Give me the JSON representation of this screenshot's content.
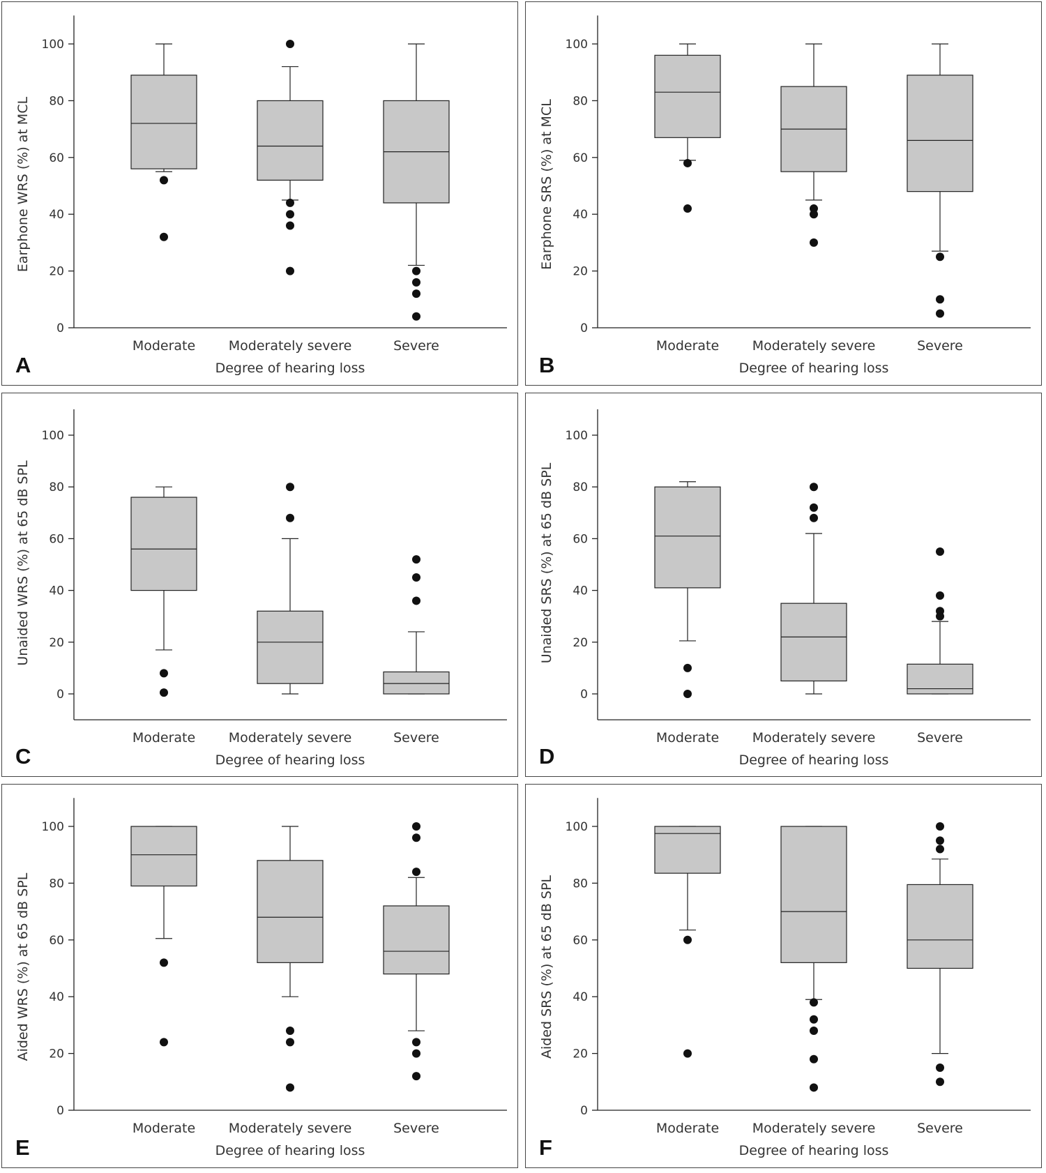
{
  "figure": {
    "panels": [
      "A",
      "B",
      "C",
      "D",
      "E",
      "F"
    ]
  },
  "chart_data": [
    {
      "letter": "A",
      "type": "box",
      "ylabel": "Earphone WRS (%) at MCL",
      "xlabel": "Degree of hearing loss",
      "ylim": [
        0,
        110
      ],
      "yticks": [
        0,
        20,
        40,
        60,
        80,
        100
      ],
      "categories": [
        "Moderate",
        "Moderately severe",
        "Severe"
      ],
      "boxes": [
        {
          "whisker_low": 55,
          "q1": 56,
          "median": 72,
          "q3": 89,
          "whisker_high": 100,
          "outliers": [
            52,
            32
          ]
        },
        {
          "whisker_low": 45,
          "q1": 52,
          "median": 64,
          "q3": 80,
          "whisker_high": 92,
          "outliers": [
            100,
            44,
            40,
            36,
            20
          ]
        },
        {
          "whisker_low": 22,
          "q1": 44,
          "median": 62,
          "q3": 80,
          "whisker_high": 100,
          "outliers": [
            20,
            16,
            12,
            4
          ]
        }
      ]
    },
    {
      "letter": "B",
      "type": "box",
      "ylabel": "Earphone SRS (%) at MCL",
      "xlabel": "Degree of hearing loss",
      "ylim": [
        0,
        110
      ],
      "yticks": [
        0,
        20,
        40,
        60,
        80,
        100
      ],
      "categories": [
        "Moderate",
        "Moderately severe",
        "Severe"
      ],
      "boxes": [
        {
          "whisker_low": 59,
          "q1": 67,
          "median": 83,
          "q3": 96,
          "whisker_high": 100,
          "outliers": [
            58,
            42
          ]
        },
        {
          "whisker_low": 45,
          "q1": 55,
          "median": 70,
          "q3": 85,
          "whisker_high": 100,
          "outliers": [
            42,
            40,
            30
          ]
        },
        {
          "whisker_low": 27,
          "q1": 48,
          "median": 66,
          "q3": 89,
          "whisker_high": 100,
          "outliers": [
            25,
            10,
            5
          ]
        }
      ]
    },
    {
      "letter": "C",
      "type": "box",
      "ylabel": "Unaided WRS (%) at 65 dB SPL",
      "xlabel": "Degree of hearing loss",
      "ylim": [
        -10,
        110
      ],
      "yticks": [
        0,
        20,
        40,
        60,
        80,
        100
      ],
      "categories": [
        "Moderate",
        "Moderately severe",
        "Severe"
      ],
      "boxes": [
        {
          "whisker_low": 17,
          "q1": 40,
          "median": 56,
          "q3": 76,
          "whisker_high": 80,
          "outliers": [
            8,
            0.5
          ]
        },
        {
          "whisker_low": 0,
          "q1": 4,
          "median": 20,
          "q3": 32,
          "whisker_high": 60,
          "outliers": [
            80,
            68
          ]
        },
        {
          "whisker_low": 0,
          "q1": 0,
          "median": 4,
          "q3": 8.5,
          "whisker_high": 24,
          "outliers": [
            52,
            45,
            36
          ]
        }
      ]
    },
    {
      "letter": "D",
      "type": "box",
      "ylabel": "Unaided SRS (%) at 65 dB SPL",
      "xlabel": "Degree of hearing loss",
      "ylim": [
        -10,
        110
      ],
      "yticks": [
        0,
        20,
        40,
        60,
        80,
        100
      ],
      "categories": [
        "Moderate",
        "Moderately severe",
        "Severe"
      ],
      "boxes": [
        {
          "whisker_low": 20.5,
          "q1": 41,
          "median": 61,
          "q3": 80,
          "whisker_high": 82,
          "outliers": [
            10,
            0
          ]
        },
        {
          "whisker_low": 0,
          "q1": 5,
          "median": 22,
          "q3": 35,
          "whisker_high": 62,
          "outliers": [
            80,
            72,
            68
          ]
        },
        {
          "whisker_low": 0,
          "q1": 0,
          "median": 2,
          "q3": 11.5,
          "whisker_high": 28,
          "outliers": [
            55,
            38,
            32,
            30
          ]
        }
      ]
    },
    {
      "letter": "E",
      "type": "box",
      "ylabel": "Aided WRS (%) at 65 dB SPL",
      "xlabel": "Degree of hearing loss",
      "ylim": [
        0,
        110
      ],
      "yticks": [
        0,
        20,
        40,
        60,
        80,
        100
      ],
      "categories": [
        "Moderate",
        "Moderately severe",
        "Severe"
      ],
      "boxes": [
        {
          "whisker_low": 60.5,
          "q1": 79,
          "median": 90,
          "q3": 100,
          "whisker_high": 100,
          "outliers": [
            52,
            24
          ]
        },
        {
          "whisker_low": 40,
          "q1": 52,
          "median": 68,
          "q3": 88,
          "whisker_high": 100,
          "outliers": [
            28,
            24,
            8
          ]
        },
        {
          "whisker_low": 28,
          "q1": 48,
          "median": 56,
          "q3": 72,
          "whisker_high": 82,
          "outliers": [
            100,
            96,
            84,
            24,
            20,
            12
          ]
        }
      ]
    },
    {
      "letter": "F",
      "type": "box",
      "ylabel": "Aided SRS (%) at 65 dB SPL",
      "xlabel": "Degree of hearing loss",
      "ylim": [
        0,
        110
      ],
      "yticks": [
        0,
        20,
        40,
        60,
        80,
        100
      ],
      "categories": [
        "Moderate",
        "Moderately severe",
        "Severe"
      ],
      "boxes": [
        {
          "whisker_low": 63.5,
          "q1": 83.5,
          "median": 97.5,
          "q3": 100,
          "whisker_high": 100,
          "outliers": [
            60,
            20
          ]
        },
        {
          "whisker_low": 39,
          "q1": 52,
          "median": 70,
          "q3": 100,
          "whisker_high": 100,
          "outliers": [
            38,
            32,
            28,
            18,
            8
          ]
        },
        {
          "whisker_low": 20,
          "q1": 50,
          "median": 60,
          "q3": 79.5,
          "whisker_high": 88.5,
          "outliers": [
            100,
            95,
            92,
            15,
            10
          ]
        }
      ]
    }
  ],
  "colors": {
    "box_fill": "#c8c8c8",
    "line": "#222222",
    "dot": "#111111"
  }
}
